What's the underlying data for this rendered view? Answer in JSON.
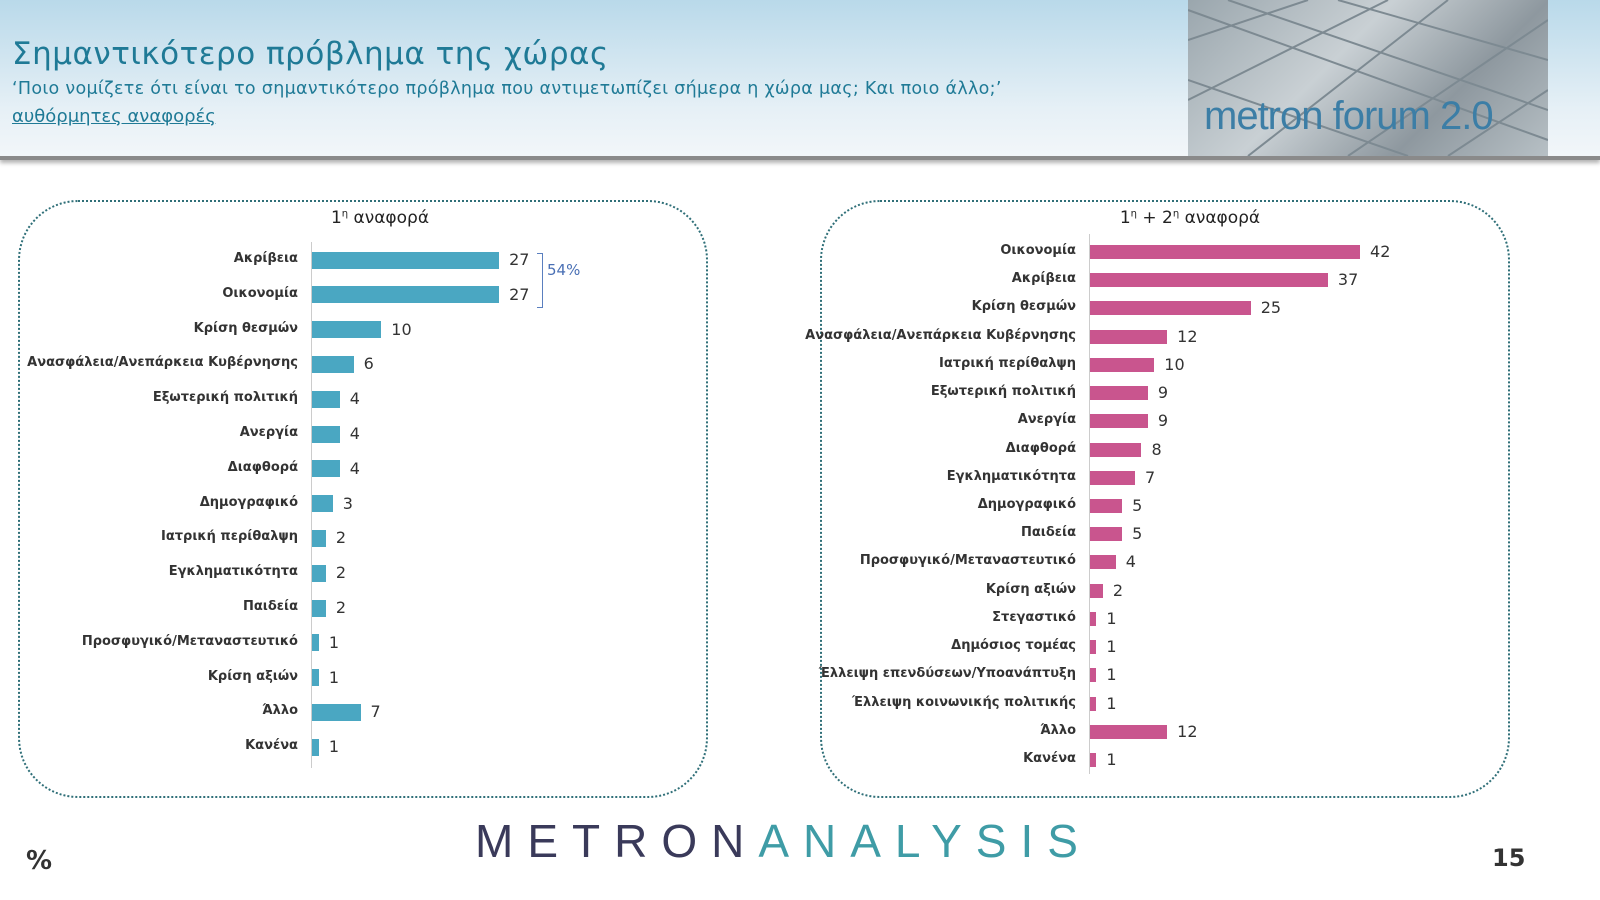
{
  "header": {
    "title": "Σημαντικότερο πρόβλημα της χώρας",
    "question": "‘Ποιο νομίζετε ότι  είναι το σημαντικότερο πρόβλημα που αντιμετωπίζει σήμερα η χώρα μας; Και ποιο άλλο;’",
    "note": "αυθόρμητες αναφορές",
    "logo_text": "metron forum 2.0"
  },
  "footer": {
    "unit": "%",
    "brand_part1": "METRON",
    "brand_part2": "ANALYSIS",
    "page": "15"
  },
  "chart_data": [
    {
      "type": "bar",
      "orientation": "horizontal",
      "title": "1η αναφορά",
      "title_main": "1",
      "title_sup": "η",
      "title_rest": " αναφορά",
      "color": "#4aa7c2",
      "xlim": [
        0,
        45
      ],
      "categories": [
        "Ακρίβεια",
        "Οικονομία",
        "Κρίση θεσμών",
        "Ανασφάλεια/Ανεπάρκεια Κυβέρνησης",
        "Εξωτερική πολιτική",
        "Ανεργία",
        "Διαφθορά",
        "Δημογραφικό",
        "Ιατρική περίθαλψη",
        "Εγκληματικότητα",
        "Παιδεία",
        "Προσφυγικό/Μεταναστευτικό",
        "Κρίση αξιών",
        "Άλλο",
        "Κανένα"
      ],
      "values": [
        27,
        27,
        10,
        6,
        4,
        4,
        4,
        3,
        2,
        2,
        2,
        1,
        1,
        7,
        1
      ],
      "annotation": "54%"
    },
    {
      "type": "bar",
      "orientation": "horizontal",
      "title": "1η + 2η αναφορά",
      "title_main": "1",
      "title_sup": "η",
      "title_rest": " + 2",
      "title_sup2": "η",
      "title_rest2": " αναφορά",
      "color": "#c9558e",
      "xlim": [
        0,
        65
      ],
      "categories": [
        "Οικονομία",
        "Ακρίβεια",
        "Κρίση θεσμών",
        "Ανασφάλεια/Ανεπάρκεια Κυβέρνησης",
        "Ιατρική περίθαλψη",
        "Εξωτερική πολιτική",
        "Ανεργία",
        "Διαφθορά",
        "Εγκληματικότητα",
        "Δημογραφικό",
        "Παιδεία",
        "Προσφυγικό/Μεταναστευτικό",
        "Κρίση αξιών",
        "Στεγαστικό",
        "Δημόσιος τομέας",
        "Έλλειψη επενδύσεων/Υποανάπτυξη",
        "Έλλειψη κοινωνικής πολιτικής",
        "Άλλο",
        "Κανένα"
      ],
      "values": [
        42,
        37,
        25,
        12,
        10,
        9,
        9,
        8,
        7,
        5,
        5,
        4,
        2,
        1,
        1,
        1,
        1,
        12,
        1
      ]
    }
  ]
}
